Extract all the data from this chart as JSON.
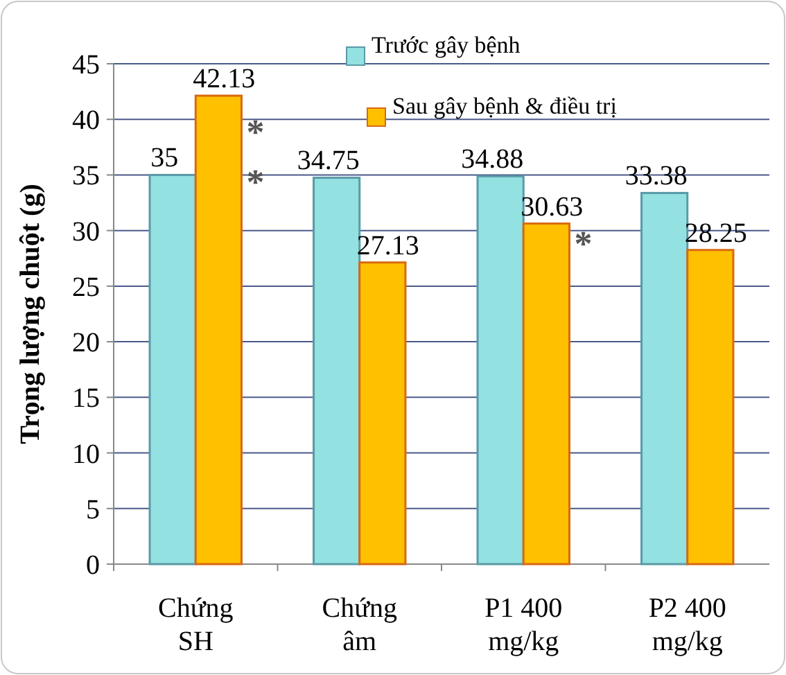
{
  "chart_data": {
    "type": "bar",
    "ylabel": "Trọng lượng chuột (g)",
    "categories": [
      "Chứng SH",
      "Chứng âm",
      "P1 400 mg/kg",
      "P2 400 mg/kg"
    ],
    "series": [
      {
        "name": "Trước gây bệnh",
        "color": "#93e1e1",
        "values": [
          35,
          34.75,
          34.88,
          33.38
        ]
      },
      {
        "name": "Sau gây bệnh & điều trị",
        "color": "#ffc000",
        "values": [
          42.13,
          27.13,
          30.63,
          28.25
        ]
      }
    ],
    "ylim": [
      0,
      45
    ],
    "yticks": [
      0,
      5,
      10,
      15,
      20,
      25,
      30,
      35,
      40,
      45
    ],
    "grid": "y",
    "legend": "top right",
    "data_labels": true,
    "annotations": [
      {
        "text": "*",
        "x": "Chứng SH",
        "y": 39.5
      },
      {
        "text": "*",
        "x": "Chứng SH",
        "y": 35
      },
      {
        "text": "*",
        "x": "P1 400 mg/kg",
        "y": 29.5
      }
    ]
  }
}
